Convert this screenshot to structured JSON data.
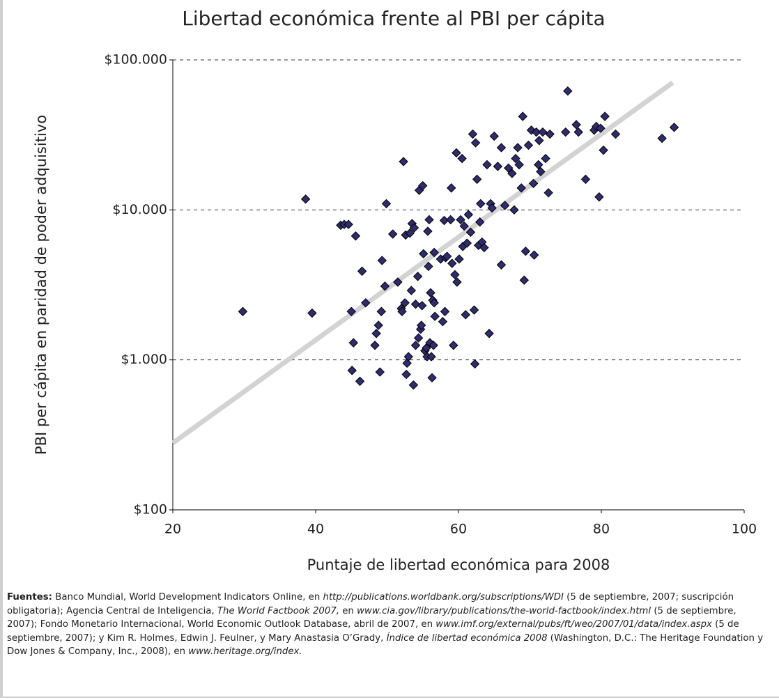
{
  "chart_data": {
    "type": "scatter",
    "title": "Libertad económica frente al PBI per cápita",
    "xlabel": "Puntaje de libertad económica para 2008",
    "ylabel": "PBI per cápita en paridad de poder adquisitivo",
    "xlim": [
      20,
      100
    ],
    "xticks": [
      20,
      40,
      60,
      80,
      100
    ],
    "ylim": [
      100,
      100000
    ],
    "log_y": true,
    "yticks": [
      {
        "value": 100,
        "label": "$100"
      },
      {
        "value": 1000,
        "label": "$1.000"
      },
      {
        "value": 10000,
        "label": "$10.000"
      },
      {
        "value": 100000,
        "label": "$100.000"
      }
    ],
    "grid": true,
    "series": [
      {
        "kind": "scatter",
        "color": "#2f2c6e",
        "x": [
          29.8,
          38.6,
          39.5,
          43.5,
          44,
          44.6,
          45,
          45.3,
          45.6,
          45.1,
          46.2,
          46.5,
          47,
          48.3,
          48.5,
          48.8,
          49,
          49.2,
          49.3,
          49.7,
          49.9,
          50.8,
          51.5,
          52,
          52.1,
          52.3,
          52.5,
          52.6,
          52.7,
          52.8,
          53,
          53.2,
          53.4,
          53.5,
          53.7,
          53.8,
          54,
          54,
          54.3,
          54.4,
          54.5,
          54.7,
          54.8,
          54.9,
          55,
          55.1,
          55.3,
          55.5,
          55.6,
          55.7,
          55.8,
          55.9,
          56,
          56.1,
          56.2,
          56.3,
          56.4,
          56.5,
          56.6,
          56.6,
          56.7,
          57.5,
          57.8,
          58,
          58.1,
          58.2,
          58.4,
          58.9,
          59,
          59.1,
          59.3,
          59.5,
          59.7,
          59.8,
          60.1,
          60.3,
          60.5,
          60.6,
          60.8,
          61,
          61.2,
          61.4,
          61.7,
          62,
          62.2,
          62.3,
          62.4,
          62.6,
          62.8,
          63,
          63.1,
          63.3,
          63.6,
          64,
          64.3,
          64.5,
          64.7,
          65,
          65.5,
          66,
          66,
          66.5,
          67,
          67.5,
          67.8,
          68,
          68.3,
          68.5,
          68.8,
          69,
          69.2,
          69.4,
          69.8,
          70.2,
          70.5,
          70.6,
          70.9,
          71.2,
          71.3,
          71.5,
          71.8,
          72.2,
          72.6,
          72.8,
          75,
          75.3,
          76.5,
          76.8,
          77.8,
          79,
          79.3,
          79.7,
          79.9,
          80.3,
          80.5,
          82,
          88.5,
          90.2
        ],
        "values": [
          2100,
          11800,
          2050,
          7900,
          8000,
          8000,
          2100,
          1300,
          6700,
          850,
          720,
          3900,
          2400,
          1250,
          1500,
          1700,
          830,
          2100,
          4600,
          3100,
          11000,
          6900,
          3300,
          2200,
          2100,
          21000,
          2400,
          6800,
          800,
          950,
          1050,
          7000,
          2900,
          8100,
          680,
          7600,
          2350,
          1250,
          3600,
          1400,
          13500,
          1600,
          1700,
          2300,
          14500,
          5100,
          1150,
          1200,
          1050,
          7200,
          4200,
          8600,
          1300,
          2800,
          1050,
          760,
          2500,
          1250,
          5200,
          2400,
          1950,
          4700,
          1800,
          8500,
          2100,
          4800,
          4900,
          8600,
          14000,
          4400,
          1250,
          3700,
          24000,
          3300,
          4700,
          8600,
          22000,
          5700,
          7800,
          2000,
          6000,
          9300,
          7100,
          32000,
          2150,
          940,
          28000,
          16000,
          5800,
          8300,
          11000,
          6100,
          5600,
          20000,
          1500,
          11000,
          10300,
          31000,
          19500,
          4300,
          26000,
          10700,
          19000,
          17500,
          10000,
          22000,
          26000,
          20000,
          14000,
          42000,
          3400,
          5300,
          27000,
          34000,
          15000,
          5000,
          33000,
          20000,
          29000,
          18000,
          33000,
          22000,
          13000,
          32000,
          33000,
          62000,
          37000,
          33000,
          16000,
          34000,
          36000,
          12200,
          35000,
          25000,
          42000,
          32000,
          30000,
          35500
        ]
      },
      {
        "kind": "line",
        "color": "#d3d3d3",
        "x": [
          20,
          90
        ],
        "values": [
          279,
          70600
        ]
      }
    ]
  },
  "footnote": [
    "Fuentes:",
    " Banco Mundial, World Development Indicators Online, en ",
    "http://publications.worldbank.org/subscriptions/WDI",
    " (5 de septiembre, 2007; suscripción obligatoria); Agencia Central de Inteligencia, ",
    "The World Factbook 2007,",
    " en ",
    "www.cia.gov/library/publications/the-world-factbook/index.html",
    " (5 de septiembre, 2007); Fondo Monetario Internacional, World Economic Outlook Database, abril de 2007, en ",
    "www.imf.org/external/pubs/ft/weo/2007/01/data/index.aspx",
    " (5 de septiembre, 2007); y Kim R. Holmes, Edwin J. Feulner, y Mary Anastasia O’Grady, ",
    "Índice de libertad económica 2008",
    " (Washington, D.C.: The Heritage Foundation y Dow Jones & Company, Inc., 2008), en ",
    "www.heritage.org/index."
  ]
}
